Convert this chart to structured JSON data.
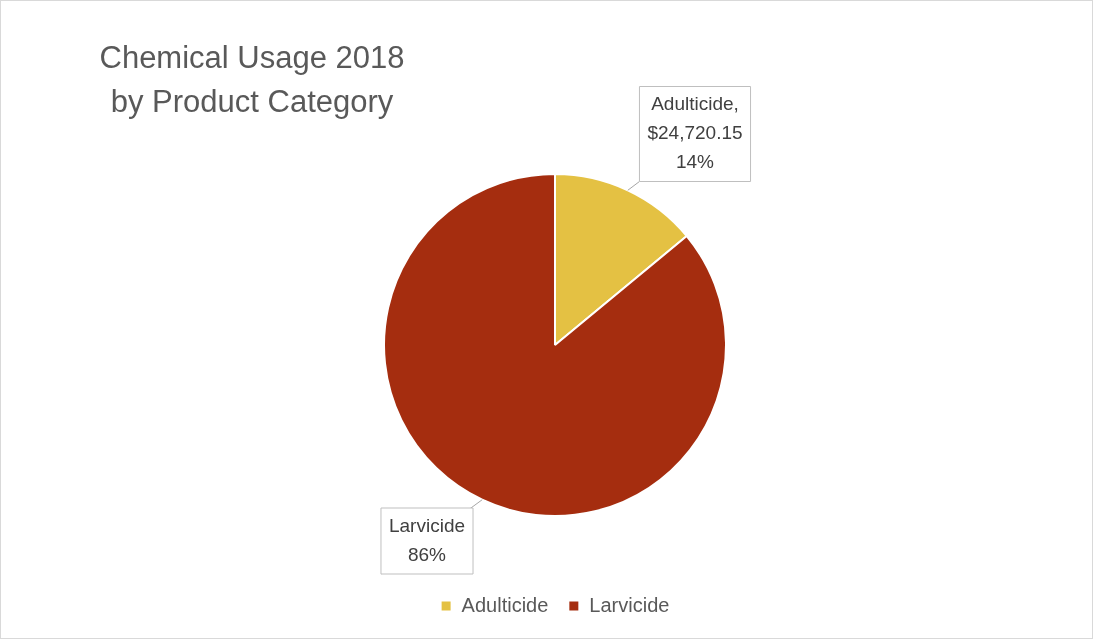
{
  "chart_data": {
    "type": "pie",
    "title": "Chemical Usage 2018\nby Product Category",
    "categories": [
      "Adulticide",
      "Larvicide"
    ],
    "values": [
      14,
      86
    ],
    "colors": [
      "#e4c143",
      "#a52d0f"
    ],
    "value_labels": [
      "Adulticide,\n$24,720.15\n14%",
      "Larvicide\n86%"
    ],
    "legend": "bottom"
  }
}
